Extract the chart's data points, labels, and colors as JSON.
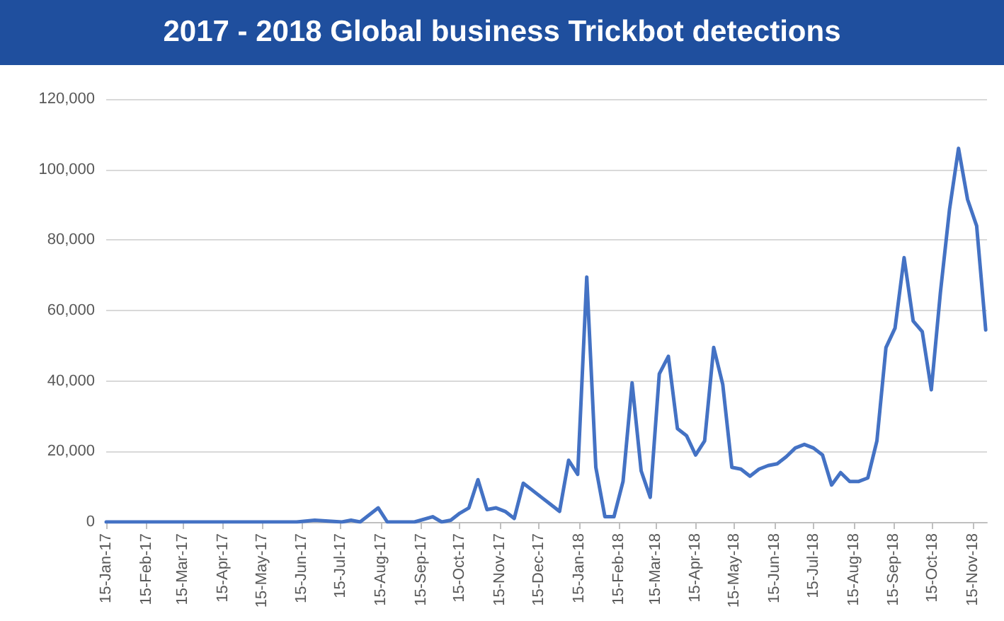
{
  "chart_data": {
    "type": "line",
    "title": "2017 - 2018 Global business Trickbot detections",
    "x": [
      "2017-01-15",
      "2017-06-11",
      "2017-06-25",
      "2017-07-16",
      "2017-07-23",
      "2017-07-30",
      "2017-08-13",
      "2017-08-20",
      "2017-09-10",
      "2017-09-24",
      "2017-10-01",
      "2017-10-08",
      "2017-10-15",
      "2017-10-22",
      "2017-10-29",
      "2017-11-05",
      "2017-11-12",
      "2017-11-19",
      "2017-11-26",
      "2017-12-03",
      "2017-12-10",
      "2017-12-17",
      "2017-12-24",
      "2017-12-31",
      "2018-01-07",
      "2018-01-14",
      "2018-01-21",
      "2018-01-28",
      "2018-02-04",
      "2018-02-11",
      "2018-02-18",
      "2018-02-25",
      "2018-03-04",
      "2018-03-11",
      "2018-03-18",
      "2018-03-25",
      "2018-04-01",
      "2018-04-08",
      "2018-04-15",
      "2018-04-22",
      "2018-04-29",
      "2018-05-06",
      "2018-05-13",
      "2018-05-20",
      "2018-05-27",
      "2018-06-03",
      "2018-06-10",
      "2018-06-17",
      "2018-06-24",
      "2018-07-01",
      "2018-07-08",
      "2018-07-15",
      "2018-07-22",
      "2018-07-29",
      "2018-08-05",
      "2018-08-12",
      "2018-08-19",
      "2018-08-26",
      "2018-09-02",
      "2018-09-09",
      "2018-09-16",
      "2018-09-23",
      "2018-09-30",
      "2018-10-07",
      "2018-10-14",
      "2018-10-21",
      "2018-10-28",
      "2018-11-04",
      "2018-11-11",
      "2018-11-18",
      "2018-11-25"
    ],
    "series": [
      {
        "color": "#4472c4",
        "values": [
          0,
          0,
          500,
          0,
          500,
          0,
          4000,
          0,
          0,
          1500,
          0,
          500,
          2500,
          4000,
          12000,
          3500,
          4000,
          3000,
          1000,
          11000,
          9000,
          7000,
          5000,
          3000,
          17500,
          13500,
          69500,
          15500,
          1500,
          1500,
          11500,
          39500,
          14500,
          7000,
          42000,
          47000,
          26500,
          24500,
          19000,
          23000,
          49500,
          39000,
          15500,
          15000,
          13000,
          15000,
          16000,
          16500,
          18500,
          21000,
          22000,
          21000,
          19000,
          10500,
          14000,
          11500,
          11500,
          12500,
          23000,
          49500,
          55000,
          75000,
          57000,
          54000,
          37500,
          65000,
          88500,
          106000,
          91500,
          84000,
          54500
        ]
      }
    ],
    "xlim": [
      "2017-01-15",
      "2018-11-26"
    ],
    "xticks": [
      {
        "value": "2017-01-15",
        "label": "15-Jan-17"
      },
      {
        "value": "2017-02-15",
        "label": "15-Feb-17"
      },
      {
        "value": "2017-03-15",
        "label": "15-Mar-17"
      },
      {
        "value": "2017-04-15",
        "label": "15-Apr-17"
      },
      {
        "value": "2017-05-15",
        "label": "15-May-17"
      },
      {
        "value": "2017-06-15",
        "label": "15-Jun-17"
      },
      {
        "value": "2017-07-15",
        "label": "15-Jul-17"
      },
      {
        "value": "2017-08-15",
        "label": "15-Aug-17"
      },
      {
        "value": "2017-09-15",
        "label": "15-Sep-17"
      },
      {
        "value": "2017-10-15",
        "label": "15-Oct-17"
      },
      {
        "value": "2017-11-15",
        "label": "15-Nov-17"
      },
      {
        "value": "2017-12-15",
        "label": "15-Dec-17"
      },
      {
        "value": "2018-01-15",
        "label": "15-Jan-18"
      },
      {
        "value": "2018-02-15",
        "label": "15-Feb-18"
      },
      {
        "value": "2018-03-15",
        "label": "15-Mar-18"
      },
      {
        "value": "2018-04-15",
        "label": "15-Apr-18"
      },
      {
        "value": "2018-05-15",
        "label": "15-May-18"
      },
      {
        "value": "2018-06-15",
        "label": "15-Jun-18"
      },
      {
        "value": "2018-07-15",
        "label": "15-Jul-18"
      },
      {
        "value": "2018-08-15",
        "label": "15-Aug-18"
      },
      {
        "value": "2018-09-15",
        "label": "15-Sep-18"
      },
      {
        "value": "2018-10-15",
        "label": "15-Oct-18"
      },
      {
        "value": "2018-11-15",
        "label": "15-Nov-18"
      }
    ],
    "ylim": [
      0,
      120000
    ],
    "yticks": [
      {
        "value": 0,
        "label": "0"
      },
      {
        "value": 20000,
        "label": "20,000"
      },
      {
        "value": 40000,
        "label": "40,000"
      },
      {
        "value": 60000,
        "label": "60,000"
      },
      {
        "value": 80000,
        "label": "80,000"
      },
      {
        "value": 100000,
        "label": "100,000"
      },
      {
        "value": 120000,
        "label": "120,000"
      }
    ],
    "grid": "y",
    "marker": "none",
    "line_style": "solid"
  }
}
